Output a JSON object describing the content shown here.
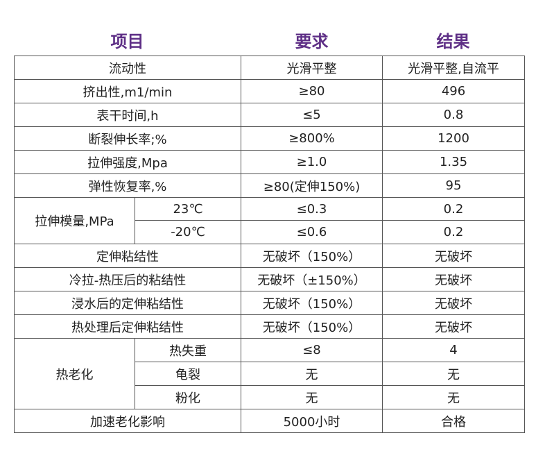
{
  "header": {
    "item": "项目",
    "requirement": "要求",
    "result": "结果"
  },
  "rows": [
    {
      "item": "流动性",
      "requirement": "光滑平整",
      "result": "光滑平整,自流平"
    },
    {
      "item": "挤出性,m1/min",
      "requirement": "≥80",
      "result": "496"
    },
    {
      "item": "表干时间,h",
      "requirement": "≤5",
      "result": "0.8"
    },
    {
      "item": "断裂伸长率;%",
      "requirement": "≥800%",
      "result": "1200"
    },
    {
      "item": "拉伸强度,Mpa",
      "requirement": "≥1.0",
      "result": "1.35"
    },
    {
      "item": "弹性恢复率,%",
      "requirement": "≥80(定伸150%)",
      "result": "95"
    }
  ],
  "modulus": {
    "label": "拉伸模量,MPa",
    "sub": [
      {
        "condition": "23℃",
        "requirement": "≤0.3",
        "result": "0.2"
      },
      {
        "condition": "-20℃",
        "requirement": "≤0.6",
        "result": "0.2"
      }
    ]
  },
  "adhesion_rows": [
    {
      "item": "定伸粘结性",
      "requirement": "无破坏（150%）",
      "result": "无破坏"
    },
    {
      "item": "冷拉-热压后的粘结性",
      "requirement": "无破坏（±150%）",
      "result": "无破坏"
    },
    {
      "item": "浸水后的定伸粘结性",
      "requirement": "无破坏（150%）",
      "result": "无破坏"
    },
    {
      "item": "热处理后定伸粘结性",
      "requirement": "无破坏（150%）",
      "result": "无破坏"
    }
  ],
  "aging": {
    "label": "热老化",
    "sub": [
      {
        "condition": "热失重",
        "requirement": "≤8",
        "result": "4"
      },
      {
        "condition": "龟裂",
        "requirement": "无",
        "result": "无"
      },
      {
        "condition": "粉化",
        "requirement": "无",
        "result": "无"
      }
    ]
  },
  "last_row": {
    "item": "加速老化影响",
    "requirement": "5000小时",
    "result": "合格"
  }
}
